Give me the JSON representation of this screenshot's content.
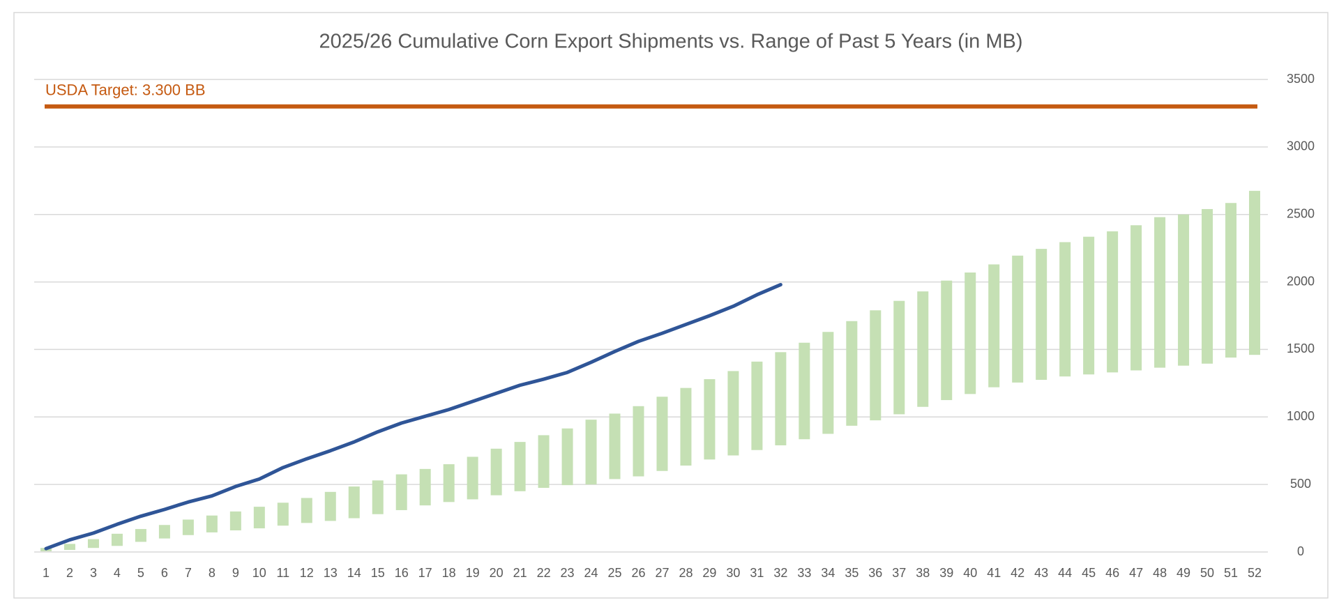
{
  "chart_data": {
    "type": "range-bar-line",
    "title": "2025/26 Cumulative Corn Export Shipments vs. Range of Past 5 Years (in MB)",
    "x": [
      1,
      2,
      3,
      4,
      5,
      6,
      7,
      8,
      9,
      10,
      11,
      12,
      13,
      14,
      15,
      16,
      17,
      18,
      19,
      20,
      21,
      22,
      23,
      24,
      25,
      26,
      27,
      28,
      29,
      30,
      31,
      32,
      33,
      34,
      35,
      36,
      37,
      38,
      39,
      40,
      41,
      42,
      43,
      44,
      45,
      46,
      47,
      48,
      49,
      50,
      51,
      52
    ],
    "xlim": [
      1,
      52
    ],
    "bars": {
      "color": "#c5e0b4",
      "low": [
        5,
        15,
        30,
        45,
        75,
        100,
        125,
        145,
        160,
        175,
        195,
        215,
        230,
        250,
        280,
        310,
        345,
        370,
        390,
        420,
        450,
        475,
        495,
        500,
        540,
        560,
        600,
        640,
        685,
        715,
        755,
        790,
        835,
        875,
        935,
        975,
        1020,
        1075,
        1125,
        1170,
        1220,
        1255,
        1275,
        1300,
        1315,
        1330,
        1345,
        1365,
        1380,
        1395,
        1440,
        1460
      ],
      "high": [
        30,
        60,
        95,
        135,
        170,
        200,
        240,
        270,
        300,
        335,
        365,
        400,
        445,
        485,
        530,
        575,
        615,
        650,
        705,
        765,
        815,
        865,
        915,
        980,
        1025,
        1080,
        1150,
        1215,
        1280,
        1340,
        1410,
        1480,
        1550,
        1630,
        1710,
        1790,
        1860,
        1930,
        2010,
        2070,
        2130,
        2195,
        2245,
        2295,
        2335,
        2375,
        2420,
        2480,
        2500,
        2540,
        2585,
        2675
      ]
    },
    "line": {
      "color": "#2f5597",
      "x": [
        1,
        2,
        3,
        4,
        5,
        6,
        7,
        8,
        9,
        10,
        11,
        12,
        13,
        14,
        15,
        16,
        17,
        18,
        19,
        20,
        21,
        22,
        23,
        24,
        25,
        26,
        27,
        28,
        29,
        30,
        31,
        32
      ],
      "values": [
        25,
        90,
        140,
        205,
        265,
        315,
        370,
        415,
        485,
        540,
        625,
        690,
        750,
        815,
        890,
        955,
        1005,
        1055,
        1115,
        1175,
        1235,
        1280,
        1330,
        1405,
        1485,
        1560,
        1620,
        1685,
        1750,
        1820,
        1905,
        1980
      ]
    },
    "target": {
      "value": 3300,
      "label": "USDA Target: 3.300 BB",
      "color": "#c55a11"
    },
    "ylim": [
      0,
      3500
    ],
    "yticks": [
      0,
      500,
      1000,
      1500,
      2000,
      2500,
      3000,
      3500
    ],
    "grid": true
  }
}
